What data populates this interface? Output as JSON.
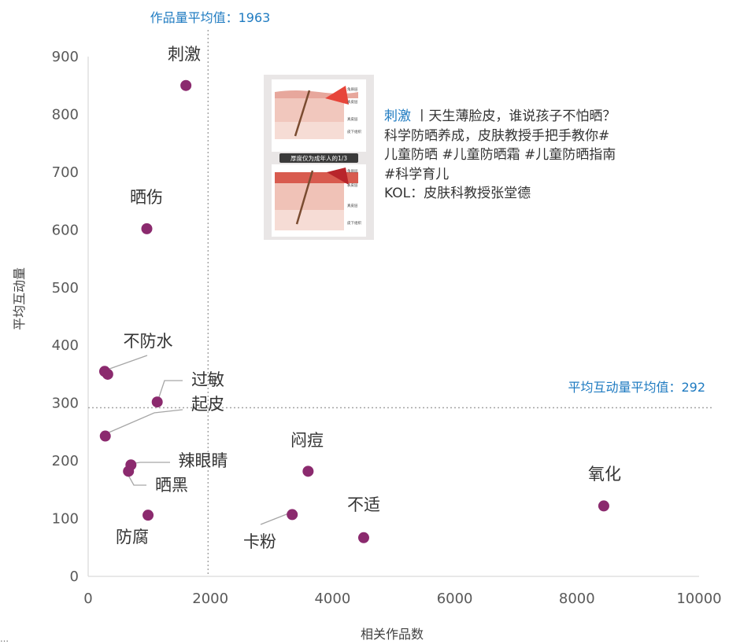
{
  "chart_data": {
    "type": "scatter",
    "xlabel": "相关作品数",
    "ylabel": "平均互动量",
    "xlim": [
      0,
      10000
    ],
    "ylim": [
      0,
      900
    ],
    "xticks": [
      0,
      2000,
      4000,
      6000,
      8000,
      10000
    ],
    "yticks": [
      0,
      100,
      200,
      300,
      400,
      500,
      600,
      700,
      800,
      900
    ],
    "grid": false,
    "reference_lines": {
      "x": {
        "value": 1963,
        "label": "作品量平均值：1963"
      },
      "y": {
        "value": 292,
        "label": "平均互动量平均值：292"
      }
    },
    "points": [
      {
        "label": "刺激",
        "x": 1600,
        "y": 850
      },
      {
        "label": "晒伤",
        "x": 960,
        "y": 602
      },
      {
        "label": "不防水",
        "x": 320,
        "y": 350
      },
      {
        "label": "",
        "x": 270,
        "y": 355
      },
      {
        "label": "过敏",
        "x": 1130,
        "y": 302
      },
      {
        "label": "起皮",
        "x": 280,
        "y": 243
      },
      {
        "label": "辣眼睛",
        "x": 700,
        "y": 193
      },
      {
        "label": "晒黑",
        "x": 660,
        "y": 182
      },
      {
        "label": "防腐",
        "x": 980,
        "y": 106
      },
      {
        "label": "闷痘",
        "x": 3600,
        "y": 182
      },
      {
        "label": "卡粉",
        "x": 3340,
        "y": 107
      },
      {
        "label": "不适",
        "x": 4510,
        "y": 67
      },
      {
        "label": "氧化",
        "x": 8440,
        "y": 122
      }
    ]
  },
  "annotation": {
    "keyword": "刺激",
    "title_rest": " 丨天生薄脸皮，谁说孩子不怕晒？",
    "lines": [
      "科学防晒养成，皮肤教授手把手教你#",
      "儿童防晒 #儿童防晒霜 #儿童防晒指南",
      "#科学育儿",
      "KOL：皮肤科教授张堂德"
    ],
    "image_texts": {
      "top_labels": [
        "角质层",
        "表皮层",
        "真皮层",
        "皮下组织"
      ],
      "banner": "厚度仅为成年人的1/3",
      "banner_highlight": "成年人的1/3",
      "bottom_labels": [
        "角质层",
        "表皮层",
        "真皮层",
        "皮下组织"
      ]
    },
    "colors": {
      "keyword": "#1f7bc1"
    }
  },
  "corner_note": "…",
  "colors": {
    "point": "#8b2a6e",
    "reference": "#1f7bc1",
    "axis": "#d9d9d9"
  }
}
